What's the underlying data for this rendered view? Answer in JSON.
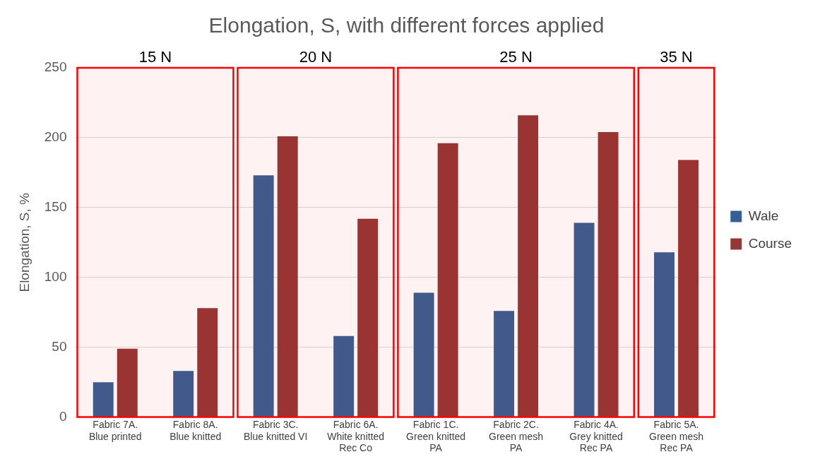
{
  "chart_data": {
    "type": "bar",
    "title": "Elongation, S, with different forces applied",
    "ylabel": "Elongation, S, %",
    "categories": [
      "Fabric 7A. Blue printed",
      "Fabric 8A. Blue knitted",
      "Fabric 3C. Blue knitted VI",
      "Fabric 6A. White knitted Rec Co",
      "Fabric 1C. Green knitted PA",
      "Fabric 2C. Green mesh PA",
      "Fabric 4A. Grey knitted Rec PA",
      "Fabric 5A. Green mesh Rec PA"
    ],
    "series": [
      {
        "name": "Wale",
        "color": "#375f93",
        "values": [
          25,
          33,
          173,
          58,
          89,
          76,
          139,
          118
        ]
      },
      {
        "name": "Course",
        "color": "#953735",
        "values": [
          49,
          78,
          201,
          142,
          196,
          216,
          204,
          184
        ]
      }
    ],
    "ylim": [
      0,
      250
    ],
    "yticks": [
      0,
      50,
      100,
      150,
      200,
      250
    ],
    "grid": "y",
    "legend": "right",
    "bands": [
      {
        "axis": "x",
        "from": "Fabric 7A. Blue printed",
        "to": "Fabric 8A. Blue knitted",
        "label": "15 N",
        "color": "#ff0000"
      },
      {
        "axis": "x",
        "from": "Fabric 3C. Blue knitted VI",
        "to": "Fabric 6A. White knitted Rec Co",
        "label": "20 N",
        "color": "#ff0000"
      },
      {
        "axis": "x",
        "from": "Fabric 1C. Green knitted PA",
        "to": "Fabric 4A. Grey knitted Rec PA",
        "label": "25 N",
        "color": "#ff0000"
      },
      {
        "axis": "x",
        "from": "Fabric 5A. Green mesh Rec PA",
        "to": "Fabric 5A. Green mesh Rec PA",
        "label": "35 N",
        "color": "#ff0000"
      }
    ]
  }
}
